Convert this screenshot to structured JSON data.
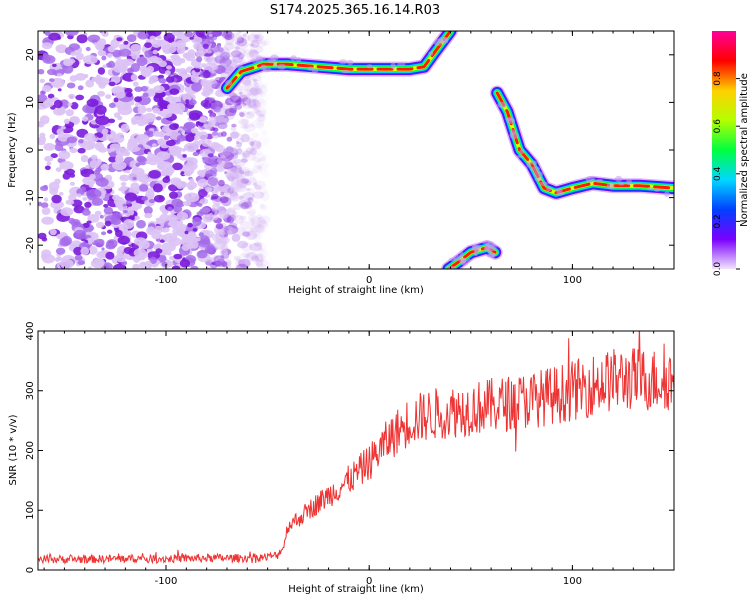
{
  "title": "S174.2025.365.16.14.R03",
  "chart_data": [
    {
      "type": "heatmap",
      "xlabel": "Height of straight line (km)",
      "ylabel": "Frequency (Hz)",
      "xlim": [
        -163,
        150
      ],
      "ylim": [
        -25,
        25
      ],
      "xticks": [
        -100,
        0,
        100
      ],
      "yticks": [
        20,
        10,
        0,
        -10,
        -20
      ],
      "colorbar": {
        "label": "Normalized spectral amplitude",
        "range": [
          0,
          1
        ],
        "ticks": [
          "0.0",
          "0.2",
          "0.4",
          "0.6",
          "0.8"
        ],
        "tick_values": [
          0,
          0.2,
          0.4,
          0.6,
          0.8
        ],
        "colors": [
          "#f2e4fb",
          "#7a00ff",
          "#0040ff",
          "#00d8ff",
          "#00ff40",
          "#b4ff00",
          "#ffd000",
          "#ff0000",
          "#ff0099"
        ]
      },
      "noise_region_x": [
        -163,
        -55
      ],
      "traces": [
        {
          "name": "upper-branch",
          "points": [
            [
              -70,
              13
            ],
            [
              -63,
              16.5
            ],
            [
              -52,
              18
            ],
            [
              -40,
              18
            ],
            [
              -25,
              17.5
            ],
            [
              -10,
              17
            ],
            [
              0,
              17
            ],
            [
              10,
              17
            ],
            [
              20,
              17
            ],
            [
              27,
              17.5
            ],
            [
              33,
              21
            ],
            [
              40,
              25
            ]
          ]
        },
        {
          "name": "middle-branch",
          "points": [
            [
              63,
              12
            ],
            [
              68,
              8
            ],
            [
              74,
              0
            ],
            [
              80,
              -3
            ],
            [
              86,
              -8
            ],
            [
              92,
              -9
            ],
            [
              100,
              -8
            ],
            [
              110,
              -7
            ],
            [
              120,
              -7.5
            ],
            [
              133,
              -7.5
            ],
            [
              150,
              -8
            ]
          ]
        },
        {
          "name": "lower-branch",
          "points": [
            [
              39,
              -25
            ],
            [
              44,
              -23.5
            ],
            [
              50,
              -21.5
            ],
            [
              58,
              -20.5
            ],
            [
              62,
              -21.5
            ]
          ]
        }
      ]
    },
    {
      "type": "line",
      "xlabel": "Height of straight line (km)",
      "ylabel": "SNR (10 * v/v)",
      "xlim": [
        -163,
        150
      ],
      "ylim": [
        0,
        400
      ],
      "xticks": [
        -100,
        0,
        100
      ],
      "yticks": [
        0,
        100,
        200,
        300,
        400
      ],
      "series": [
        {
          "name": "SNR",
          "color": "#ee3333",
          "x": [
            -163,
            -140,
            -120,
            -100,
            -80,
            -60,
            -50,
            -45,
            -42,
            -40,
            -35,
            -30,
            -20,
            -10,
            0,
            10,
            20,
            30,
            40,
            50,
            60,
            70,
            80,
            90,
            100,
            110,
            120,
            130,
            140,
            150
          ],
          "y": [
            18,
            18,
            19,
            19,
            20,
            20,
            22,
            25,
            40,
            75,
            85,
            100,
            125,
            150,
            180,
            220,
            250,
            260,
            265,
            270,
            275,
            280,
            285,
            292,
            300,
            310,
            318,
            320,
            318,
            320
          ]
        }
      ]
    }
  ]
}
